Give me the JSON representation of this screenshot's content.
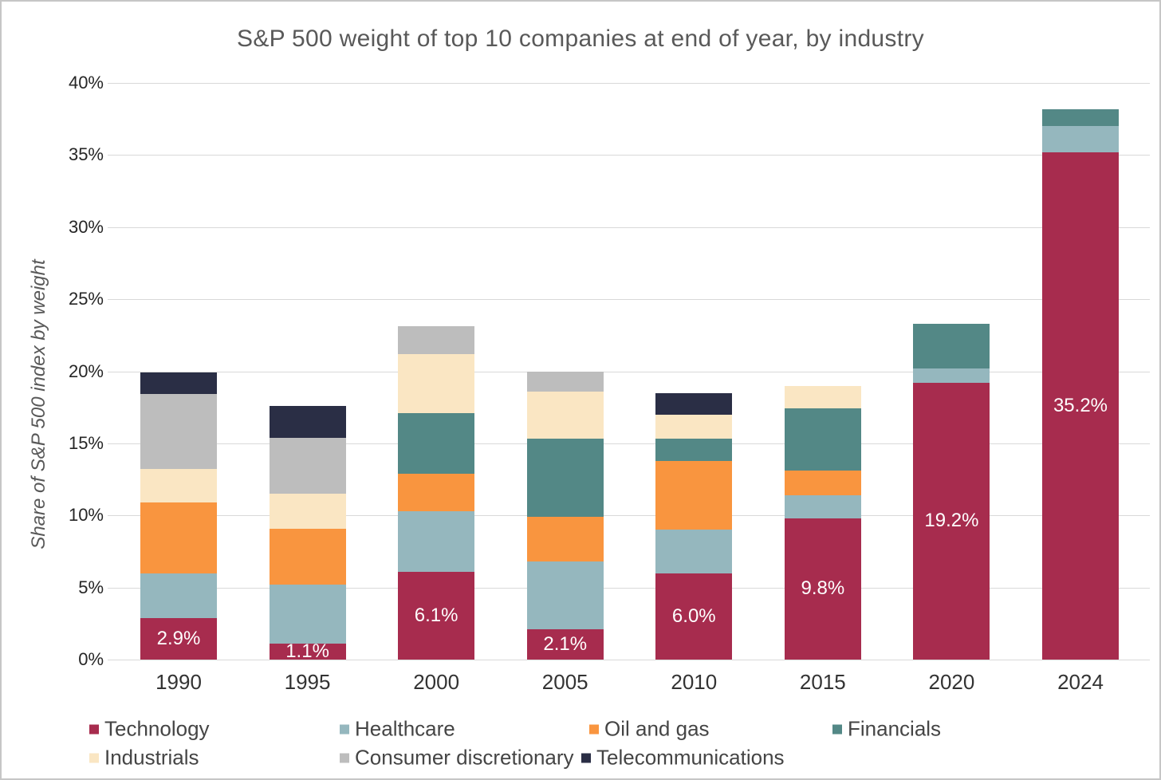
{
  "title": "S&P 500 weight of top 10 companies at end of year, by industry",
  "y_axis": {
    "title": "Share of S&P 500 index by weight",
    "tick_labels": [
      "0%",
      "5%",
      "10%",
      "15%",
      "20%",
      "25%",
      "30%",
      "35%",
      "40%"
    ]
  },
  "x_axis": {
    "tick_labels": [
      "1990",
      "1995",
      "2000",
      "2005",
      "2010",
      "2015",
      "2020",
      "2024"
    ]
  },
  "chart_data": {
    "type": "bar",
    "stacked": true,
    "title": "S&P 500 weight of top 10 companies at end of year, by industry",
    "xlabel": "",
    "ylabel": "Share of S&P 500 index by weight",
    "ylim": [
      0,
      40
    ],
    "y_tick_step": 5,
    "grid": true,
    "legend_position": "bottom",
    "categories": [
      "1990",
      "1995",
      "2000",
      "2005",
      "2010",
      "2015",
      "2020",
      "2024"
    ],
    "series": [
      {
        "name": "Technology",
        "color": "#A72C4E",
        "values": [
          2.9,
          1.1,
          6.1,
          2.1,
          6.0,
          9.8,
          19.2,
          35.2
        ]
      },
      {
        "name": "Healthcare",
        "color": "#95B7BE",
        "values": [
          3.1,
          4.1,
          4.2,
          4.7,
          3.0,
          1.6,
          1.0,
          1.8
        ]
      },
      {
        "name": "Oil and gas",
        "color": "#F9953F",
        "values": [
          4.9,
          3.9,
          2.6,
          3.1,
          4.8,
          1.7,
          0,
          0
        ]
      },
      {
        "name": "Financials",
        "color": "#538886",
        "values": [
          0,
          0,
          4.2,
          5.4,
          1.5,
          4.3,
          3.1,
          1.2
        ]
      },
      {
        "name": "Industrials",
        "color": "#FAE6C3",
        "values": [
          2.3,
          2.4,
          4.1,
          3.3,
          1.7,
          1.6,
          0,
          0
        ]
      },
      {
        "name": "Consumer discretionary",
        "color": "#BDBDBD",
        "values": [
          5.2,
          3.9,
          1.9,
          1.4,
          0,
          0,
          0,
          0
        ]
      },
      {
        "name": "Telecommunications",
        "color": "#2A2E45",
        "values": [
          1.5,
          2.2,
          0,
          0,
          1.5,
          0,
          0,
          0
        ]
      }
    ],
    "stack_totals": [
      19.9,
      17.6,
      23.1,
      20.0,
      18.5,
      19.0,
      23.3,
      38.2
    ],
    "bar_labels": {
      "on_series": "Technology",
      "values": [
        "2.9%",
        "1.1%",
        "6.1%",
        "2.1%",
        "6.0%",
        "9.8%",
        "19.2%",
        "35.2%"
      ],
      "color": "#FFFFFF"
    }
  },
  "colors": {
    "background": "#FFFFFF",
    "border": "#C6C6C6",
    "gridline": "#D9D9D9",
    "title_text": "#595959",
    "tick_text": "#262626",
    "category_text": "#333333",
    "legend_text": "#454545"
  }
}
